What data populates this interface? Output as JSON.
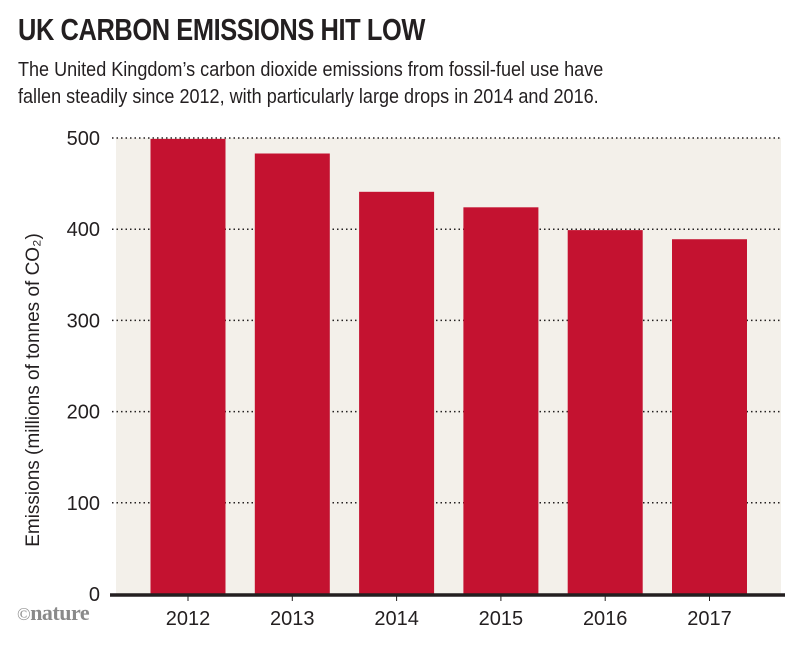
{
  "header": {
    "title": "UK CARBON EMISSIONS HIT LOW",
    "subtitle_lines": [
      "The United Kingdom’s carbon dioxide emissions from fossil-fuel use have",
      "fallen steadily since 2012, with particularly large drops in 2014 and 2016."
    ]
  },
  "credit": {
    "copyright_symbol": "©",
    "brand": "nature"
  },
  "colors": {
    "bar": "#C41230",
    "plot_background": "#F3F0EA",
    "axis": "#231F20",
    "gridline": "#231F20"
  },
  "chart_data": {
    "type": "bar",
    "title": "UK CARBON EMISSIONS HIT LOW",
    "subtitle": "The United Kingdom’s carbon dioxide emissions from fossil-fuel use have fallen steadily since 2012, with particularly large drops in 2014 and 2016.",
    "categories": [
      "2012",
      "2013",
      "2014",
      "2015",
      "2016",
      "2017"
    ],
    "values": [
      499,
      483,
      441,
      424,
      399,
      389
    ],
    "xlabel": "",
    "ylabel": "Emissions (millions of tonnes of CO₂)",
    "ylim": [
      0,
      500
    ],
    "yticks": [
      0,
      100,
      200,
      300,
      400,
      500
    ],
    "grid": "horizontal dotted",
    "legend": "none"
  }
}
